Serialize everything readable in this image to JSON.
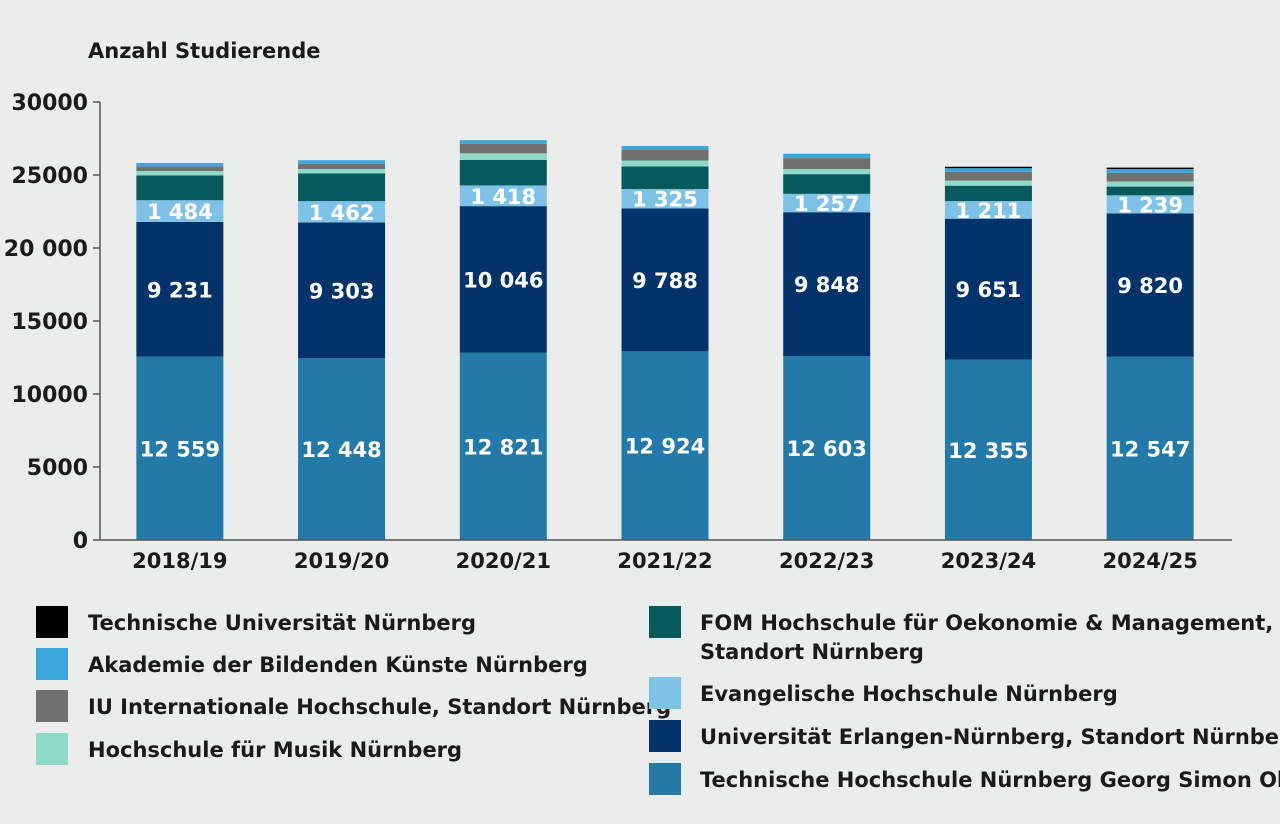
{
  "chart_data": {
    "type": "bar",
    "stacked": true,
    "ylabel": "Anzahl Studierende",
    "ylim": [
      0,
      30000
    ],
    "yticks": [
      0,
      5000,
      10000,
      15000,
      20000,
      25000,
      30000
    ],
    "ytick_labels": [
      "0",
      "5000",
      "10000",
      "15000",
      "20 000",
      "25000",
      "30000"
    ],
    "grid": false,
    "legend_position": "bottom",
    "categories": [
      "2018/19",
      "2019/20",
      "2020/21",
      "2021/22",
      "2022/23",
      "2023/24",
      "2024/25"
    ],
    "series": [
      {
        "name": "Technische Hochschule Nürnberg Georg Simon Ohm",
        "color": "#237aa8",
        "values": [
          12559,
          12448,
          12821,
          12924,
          12603,
          12355,
          12547
        ],
        "labels": [
          "12 559",
          "12 448",
          "12 821",
          "12 924",
          "12 603",
          "12 355",
          "12 547"
        ]
      },
      {
        "name": "Universität Erlangen-Nürnberg, Standort Nürnberg",
        "color": "#04336b",
        "values": [
          9231,
          9303,
          10046,
          9788,
          9848,
          9651,
          9820
        ],
        "labels": [
          "9 231",
          "9 303",
          "10 046",
          "9 788",
          "9 848",
          "9 651",
          "9 820"
        ]
      },
      {
        "name": "Evangelische Hochschule Nürnberg",
        "color": "#7ec2e8",
        "values": [
          1484,
          1462,
          1418,
          1325,
          1257,
          1211,
          1239
        ],
        "labels": [
          "1 484",
          "1 462",
          "1 418",
          "1 325",
          "1 257",
          "1 211",
          "1 239"
        ]
      },
      {
        "name": "FOM Hochschule für Oekonomie & Management, Standort Nürnberg",
        "color": "#06595c",
        "values": [
          1700,
          1900,
          1750,
          1550,
          1350,
          1050,
          600
        ]
      },
      {
        "name": "Hochschule für Musik Nürnberg",
        "color": "#8fd9c8",
        "values": [
          300,
          300,
          450,
          400,
          350,
          350,
          350
        ]
      },
      {
        "name": "IU Internationale Hochschule, Standort Nürnberg",
        "color": "#707070",
        "values": [
          300,
          350,
          650,
          750,
          750,
          600,
          600
        ]
      },
      {
        "name": "Akademie der Bildenden Künste Nürnberg",
        "color": "#3ba6d9",
        "values": [
          250,
          250,
          250,
          250,
          300,
          250,
          250
        ]
      },
      {
        "name": "Technische Universität Nürnberg",
        "color": "#000000",
        "values": [
          0,
          0,
          0,
          0,
          0,
          100,
          100
        ]
      }
    ]
  },
  "legend": {
    "left": [
      {
        "label": "Technische Universität Nürnberg",
        "color": "#000000"
      },
      {
        "label": "Akademie der Bildenden Künste Nürnberg",
        "color": "#3ba6d9"
      },
      {
        "label": "IU Internationale Hochschule, Standort Nürnberg",
        "color": "#707070"
      },
      {
        "label": "Hochschule für Musik Nürnberg",
        "color": "#8fd9c8"
      }
    ],
    "right": [
      {
        "label": "FOM Hochschule für Oekonomie & Management,",
        "label2": "Standort Nürnberg",
        "color": "#06595c"
      },
      {
        "label": "Evangelische Hochschule Nürnberg",
        "color": "#7ec2e8"
      },
      {
        "label": "Universität Erlangen-Nürnberg, Standort Nürnberg",
        "color": "#04336b"
      },
      {
        "label": "Technische Hochschule Nürnberg Georg Simon Ohm",
        "color": "#237aa8"
      }
    ]
  }
}
